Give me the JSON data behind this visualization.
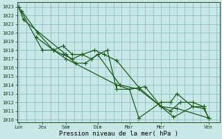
{
  "background_color": "#c8e8e8",
  "grid_color": "#90c0c0",
  "line_color": "#1a5a1a",
  "yticks": [
    1010,
    1011,
    1012,
    1013,
    1014,
    1015,
    1016,
    1017,
    1018,
    1019,
    1020,
    1021,
    1022,
    1023
  ],
  "ylim": [
    1009.7,
    1023.5
  ],
  "xlim": [
    -0.05,
    6.35
  ],
  "xtick_labels": [
    "Lun",
    "Jeu",
    "Sam",
    "Dim",
    "Mar",
    "Mer",
    "Ven"
  ],
  "xtick_positions": [
    0,
    0.75,
    1.5,
    2.5,
    3.5,
    4.5,
    6.0
  ],
  "xlabel": "Pression niveau de la mer( hPa )",
  "series": [
    [
      1023.0,
      1021.5,
      1017.5,
      1016.5,
      1016.5,
      1017.5,
      1014.0,
      1013.5,
      1011.5,
      1010.3,
      1011.5,
      1011.3,
      1010.2
    ],
    [
      1019.5,
      1018.0,
      1018.5,
      1017.5,
      1017.5,
      1018.0,
      1017.5,
      1016.8,
      1013.7,
      1011.5,
      1011.0,
      1012.0,
      1012.0,
      1011.5
    ],
    [
      1023.0,
      1018.0,
      1018.0,
      1017.5,
      1017.0,
      1017.5,
      1017.0,
      1017.5,
      1018.0,
      1013.5,
      1013.5,
      1010.2,
      1012.0,
      1012.0,
      1013.0,
      1011.5,
      1011.5,
      1010.2
    ],
    [
      1022.5,
      1020.0,
      1018.0,
      1017.0,
      1014.0,
      1013.5,
      1013.8,
      1011.5,
      1011.3,
      1010.2
    ]
  ],
  "series_x": [
    [
      0,
      0.15,
      1.5,
      1.8,
      2.1,
      2.5,
      3.2,
      3.8,
      4.5,
      4.9,
      5.5,
      5.85,
      6.0
    ],
    [
      0.55,
      1.1,
      1.4,
      1.7,
      2.0,
      2.4,
      2.7,
      3.1,
      3.8,
      4.5,
      4.8,
      5.1,
      5.5,
      5.85
    ],
    [
      0,
      0.75,
      1.1,
      1.4,
      1.7,
      2.0,
      2.3,
      2.5,
      2.8,
      3.1,
      3.5,
      3.8,
      4.5,
      4.8,
      5.0,
      5.5,
      5.85,
      6.0
    ],
    [
      0.1,
      0.6,
      1.1,
      1.5,
      3.1,
      3.5,
      4.0,
      4.5,
      5.0,
      6.0
    ]
  ],
  "marker": "+",
  "markersize": 4,
  "linewidth": 0.9,
  "tick_fontsize": 5.0,
  "xlabel_fontsize": 6.5
}
